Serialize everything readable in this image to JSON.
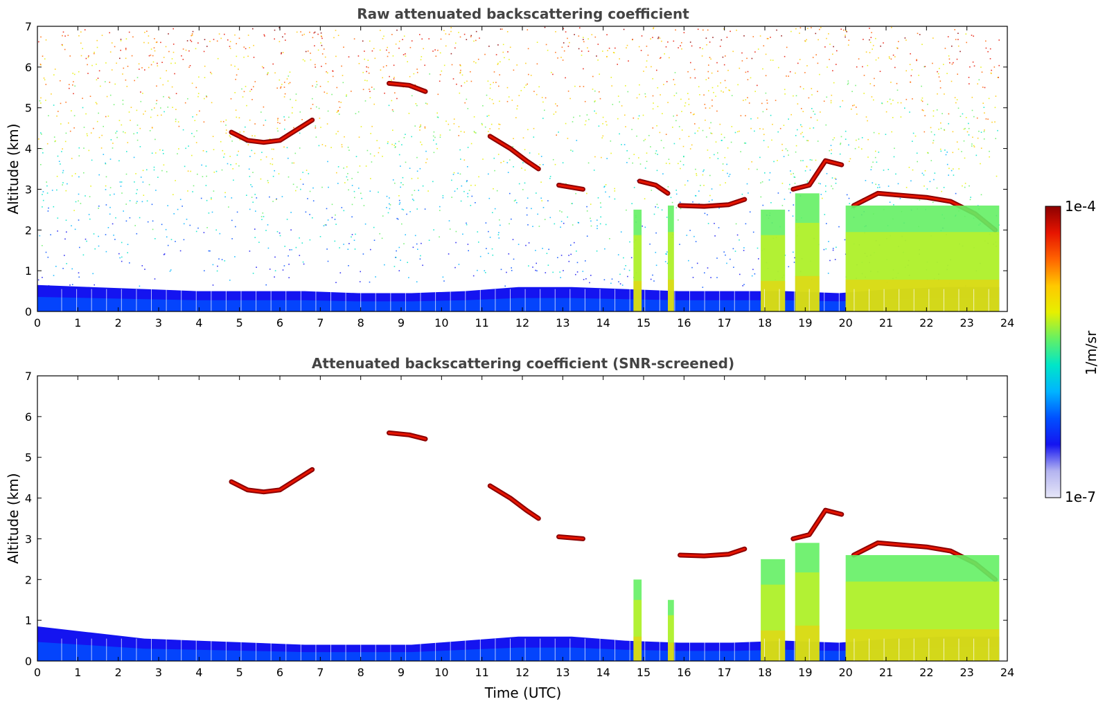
{
  "chart_data": [
    {
      "type": "heatmap",
      "title": "Raw attenuated backscattering coefficient",
      "xlabel": "",
      "ylabel": "Altitude (km)",
      "xlim": [
        0,
        24
      ],
      "ylim": [
        0,
        7
      ],
      "x_ticks": [
        "0",
        "1",
        "2",
        "3",
        "4",
        "5",
        "6",
        "7",
        "8",
        "9",
        "10",
        "11",
        "12",
        "13",
        "14",
        "15",
        "16",
        "17",
        "18",
        "19",
        "20",
        "21",
        "22",
        "23",
        "24"
      ],
      "y_ticks": [
        "0",
        "1",
        "2",
        "3",
        "4",
        "5",
        "6",
        "7"
      ],
      "grid": false,
      "features": [
        {
          "kind": "noise",
          "description": "random speckle field",
          "t_range": [
            0,
            23.8
          ],
          "alt_range": [
            0.6,
            7
          ]
        },
        {
          "kind": "boundary_layer",
          "t_range": [
            0,
            23.8
          ],
          "alt_top": [
            0.65,
            0.6,
            0.55,
            0.5,
            0.5,
            0.5,
            0.45,
            0.45,
            0.5,
            0.6,
            0.6,
            0.55,
            0.5,
            0.5,
            0.5,
            0.45,
            0.55,
            0.6,
            0.6
          ]
        },
        {
          "kind": "cloud_layer",
          "points": [
            [
              4.8,
              4.4
            ],
            [
              5.2,
              4.2
            ],
            [
              5.6,
              4.15
            ],
            [
              6.0,
              4.2
            ],
            [
              6.4,
              4.45
            ],
            [
              6.8,
              4.7
            ]
          ]
        },
        {
          "kind": "cloud_layer",
          "points": [
            [
              8.7,
              5.6
            ],
            [
              9.2,
              5.55
            ],
            [
              9.6,
              5.4
            ]
          ]
        },
        {
          "kind": "cloud_layer",
          "points": [
            [
              11.2,
              4.3
            ],
            [
              11.7,
              4.0
            ],
            [
              12.1,
              3.7
            ],
            [
              12.4,
              3.5
            ]
          ]
        },
        {
          "kind": "cloud_layer",
          "points": [
            [
              12.9,
              3.1
            ],
            [
              13.5,
              3.0
            ]
          ]
        },
        {
          "kind": "cloud_layer",
          "points": [
            [
              14.9,
              3.2
            ],
            [
              15.3,
              3.1
            ],
            [
              15.6,
              2.9
            ]
          ]
        },
        {
          "kind": "cloud_layer",
          "points": [
            [
              15.9,
              2.6
            ],
            [
              16.5,
              2.58
            ],
            [
              17.1,
              2.62
            ],
            [
              17.5,
              2.75
            ]
          ]
        },
        {
          "kind": "cloud_layer",
          "points": [
            [
              18.7,
              3.0
            ],
            [
              19.1,
              3.1
            ],
            [
              19.5,
              3.7
            ],
            [
              19.9,
              3.6
            ]
          ]
        },
        {
          "kind": "cloud_layer",
          "points": [
            [
              20.2,
              2.6
            ],
            [
              20.8,
              2.9
            ],
            [
              21.4,
              2.85
            ],
            [
              22.0,
              2.8
            ],
            [
              22.6,
              2.7
            ],
            [
              23.2,
              2.4
            ],
            [
              23.7,
              2.0
            ]
          ]
        },
        {
          "kind": "rain_column",
          "t_range": [
            14.75,
            14.95
          ],
          "alt_top": 2.5
        },
        {
          "kind": "rain_column",
          "t_range": [
            15.6,
            15.75
          ],
          "alt_top": 2.6
        },
        {
          "kind": "rain_column",
          "t_range": [
            17.9,
            18.5
          ],
          "alt_top": 2.5
        },
        {
          "kind": "rain_column",
          "t_range": [
            18.75,
            19.35
          ],
          "alt_top": 2.9
        },
        {
          "kind": "rain_column",
          "t_range": [
            20.0,
            23.8
          ],
          "alt_top": 2.6
        }
      ]
    },
    {
      "type": "heatmap",
      "title": "Attenuated backscattering coefficient (SNR-screened)",
      "xlabel": "Time (UTC)",
      "ylabel": "Altitude (km)",
      "xlim": [
        0,
        24
      ],
      "ylim": [
        0,
        7
      ],
      "x_ticks": [
        "0",
        "1",
        "2",
        "3",
        "4",
        "5",
        "6",
        "7",
        "8",
        "9",
        "10",
        "11",
        "12",
        "13",
        "14",
        "15",
        "16",
        "17",
        "18",
        "19",
        "20",
        "21",
        "22",
        "23",
        "24"
      ],
      "y_ticks": [
        "0",
        "1",
        "2",
        "3",
        "4",
        "5",
        "6",
        "7"
      ],
      "grid": false,
      "features": [
        {
          "kind": "boundary_layer",
          "t_range": [
            0,
            23.8
          ],
          "alt_top": [
            0.85,
            0.7,
            0.55,
            0.5,
            0.45,
            0.4,
            0.4,
            0.4,
            0.5,
            0.6,
            0.6,
            0.5,
            0.45,
            0.45,
            0.5,
            0.45,
            0.55,
            0.6,
            0.6
          ]
        },
        {
          "kind": "cloud_layer",
          "points": [
            [
              4.8,
              4.4
            ],
            [
              5.2,
              4.2
            ],
            [
              5.6,
              4.15
            ],
            [
              6.0,
              4.2
            ],
            [
              6.4,
              4.45
            ],
            [
              6.8,
              4.7
            ]
          ]
        },
        {
          "kind": "cloud_layer",
          "points": [
            [
              8.7,
              5.6
            ],
            [
              9.2,
              5.55
            ],
            [
              9.6,
              5.45
            ]
          ]
        },
        {
          "kind": "cloud_layer",
          "points": [
            [
              11.2,
              4.3
            ],
            [
              11.7,
              4.0
            ],
            [
              12.1,
              3.7
            ],
            [
              12.4,
              3.5
            ]
          ]
        },
        {
          "kind": "cloud_layer",
          "points": [
            [
              12.9,
              3.05
            ],
            [
              13.5,
              3.0
            ]
          ]
        },
        {
          "kind": "cloud_layer",
          "points": [
            [
              15.9,
              2.6
            ],
            [
              16.5,
              2.58
            ],
            [
              17.1,
              2.62
            ],
            [
              17.5,
              2.75
            ]
          ]
        },
        {
          "kind": "cloud_layer",
          "points": [
            [
              18.7,
              3.0
            ],
            [
              19.1,
              3.1
            ],
            [
              19.5,
              3.7
            ],
            [
              19.9,
              3.6
            ]
          ]
        },
        {
          "kind": "cloud_layer",
          "points": [
            [
              20.2,
              2.6
            ],
            [
              20.8,
              2.9
            ],
            [
              21.4,
              2.85
            ],
            [
              22.0,
              2.8
            ],
            [
              22.6,
              2.7
            ],
            [
              23.2,
              2.4
            ],
            [
              23.7,
              2.0
            ]
          ]
        },
        {
          "kind": "rain_column",
          "t_range": [
            14.75,
            14.95
          ],
          "alt_top": 2.0
        },
        {
          "kind": "rain_column",
          "t_range": [
            15.6,
            15.75
          ],
          "alt_top": 1.5
        },
        {
          "kind": "rain_column",
          "t_range": [
            17.9,
            18.5
          ],
          "alt_top": 2.5
        },
        {
          "kind": "rain_column",
          "t_range": [
            18.75,
            19.35
          ],
          "alt_top": 2.9
        },
        {
          "kind": "rain_column",
          "t_range": [
            20.0,
            23.8
          ],
          "alt_top": 2.6
        }
      ]
    }
  ],
  "colorbar": {
    "label": "1/m/sr",
    "max_label": "1e-4",
    "min_label": "1e-7",
    "scale": "log",
    "colors": [
      "#e6e6f8",
      "#b4b4f0",
      "#1414f0",
      "#0050ff",
      "#00b4ff",
      "#00e6c8",
      "#64f064",
      "#e6f000",
      "#ffc800",
      "#ff6400",
      "#e61400",
      "#8c0000"
    ]
  }
}
